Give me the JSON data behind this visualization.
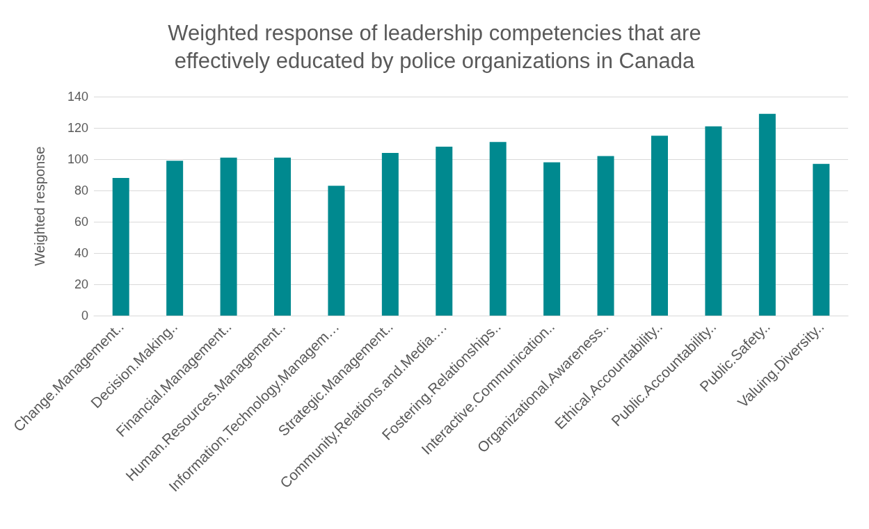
{
  "chart_data": {
    "type": "bar",
    "title": "Weighted response of leadership competencies that are\neffectively educated by police organizations in Canada",
    "ylabel": "Weighted response",
    "categories": [
      "Change.Management..",
      "Decision.Making..",
      "Financial.Management..",
      "Human.Resources.Management..",
      "Information.Technology.Managem…",
      "Strategic.Management..",
      "Community.Relations.and.Media.…",
      "Fostering.Relationships..",
      "Interactive.Communication..",
      "Organizational.Awareness..",
      "Ethical.Accountability..",
      "Public.Accountability..",
      "Public.Safety..",
      "Valuing.Diversity.."
    ],
    "values": [
      88,
      99,
      101,
      101,
      83,
      104,
      108,
      111,
      98,
      102,
      115,
      121,
      129,
      97
    ],
    "color": "#00898f",
    "ylim": [
      0,
      140
    ],
    "yticks": [
      0,
      20,
      40,
      60,
      80,
      100,
      120,
      140
    ],
    "grid": "y"
  }
}
